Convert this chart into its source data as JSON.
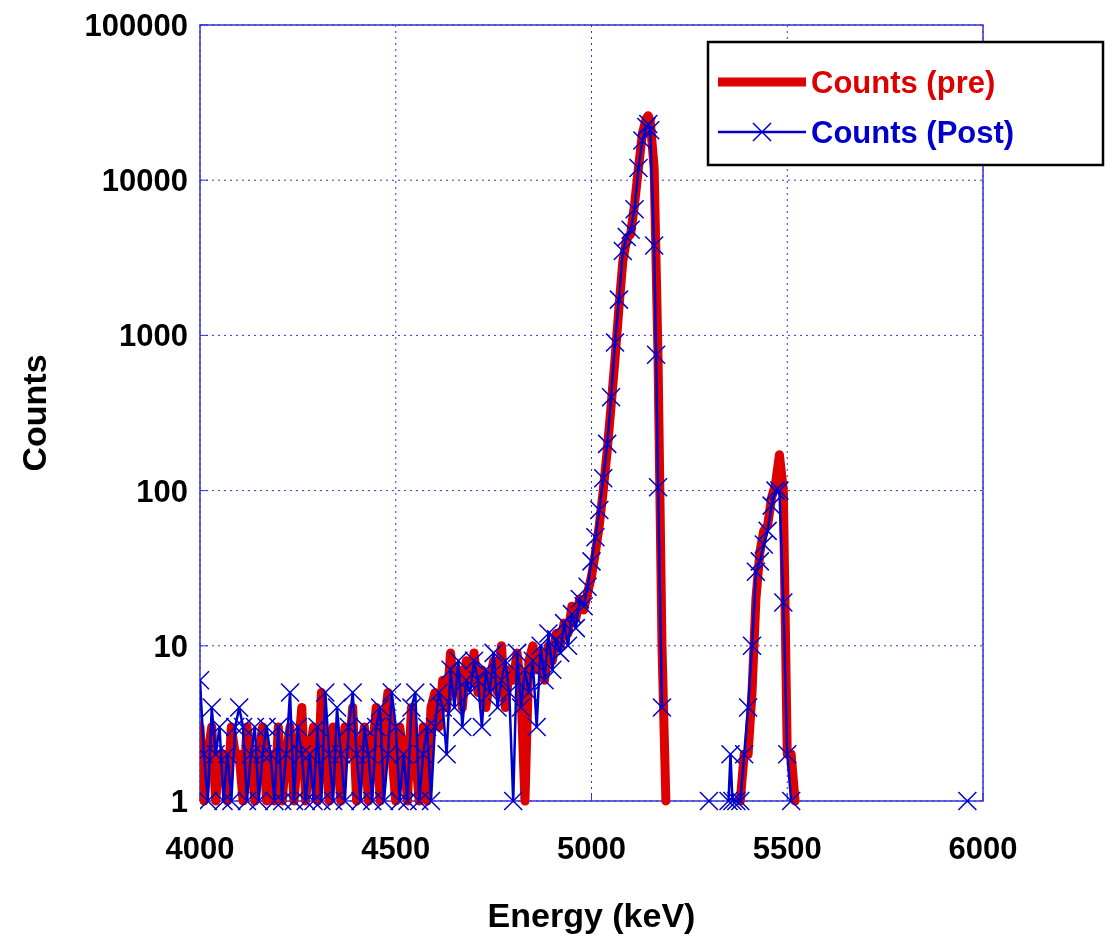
{
  "chart_data": {
    "type": "line",
    "xlabel": "Energy (keV)",
    "ylabel": "Counts",
    "log": "y",
    "grid": true,
    "legend": "top right",
    "xlim": [
      4000,
      6000
    ],
    "xticks": [
      4000,
      4500,
      5000,
      5500,
      6000
    ],
    "ylim": [
      1,
      100000
    ],
    "yticks": [
      1,
      10,
      100,
      1000,
      10000,
      100000
    ],
    "series": [
      {
        "name": "Counts (pre)",
        "color": "#dd0000",
        "marker": "none",
        "x": [
          4000,
          4010,
          4020,
          4030,
          4040,
          4050,
          4060,
          4070,
          4080,
          4090,
          4100,
          4110,
          4120,
          4130,
          4140,
          4150,
          4160,
          4170,
          4180,
          4190,
          4200,
          4210,
          4220,
          4230,
          4240,
          4250,
          4260,
          4270,
          4280,
          4290,
          4300,
          4310,
          4320,
          4330,
          4340,
          4350,
          4360,
          4370,
          4380,
          4390,
          4400,
          4410,
          4420,
          4430,
          4440,
          4450,
          4460,
          4470,
          4480,
          4490,
          4500,
          4510,
          4520,
          4530,
          4540,
          4550,
          4560,
          4570,
          4580,
          4590,
          4600,
          4610,
          4620,
          4630,
          4640,
          4650,
          4660,
          4670,
          4680,
          4690,
          4700,
          4710,
          4720,
          4730,
          4740,
          4750,
          4760,
          4770,
          4780,
          4790,
          4800,
          4810,
          4820,
          4830,
          4840,
          4850,
          4860,
          4870,
          4880,
          4890,
          4900,
          4910,
          4920,
          4930,
          4940,
          4950,
          4960,
          4970,
          4980,
          4990,
          5000,
          5010,
          5020,
          5030,
          5040,
          5050,
          5060,
          5070,
          5080,
          5090,
          5100,
          5110,
          5120,
          5130,
          5140,
          5145,
          5150,
          5160,
          5170,
          5180,
          5190,
          5200,
          5380,
          5390,
          5400,
          5410,
          5420,
          5430,
          5440,
          5450,
          5460,
          5470,
          5480,
          5490,
          5500,
          5510,
          5520
        ],
        "values": [
          3,
          1,
          2,
          3,
          1,
          2,
          2,
          1,
          3,
          2,
          2,
          1,
          3,
          2,
          1,
          2,
          3,
          1,
          2,
          1,
          3,
          1,
          2,
          3,
          1,
          2,
          4,
          1,
          2,
          3,
          1,
          5,
          2,
          1,
          3,
          2,
          1,
          3,
          2,
          4,
          1,
          2,
          3,
          1,
          2,
          4,
          1,
          3,
          5,
          2,
          1,
          3,
          2,
          1,
          4,
          2,
          1,
          3,
          1,
          4,
          5,
          3,
          6,
          4,
          9,
          5,
          7,
          4,
          8,
          6,
          9,
          5,
          7,
          4,
          6,
          8,
          5,
          10,
          4,
          7,
          6,
          9,
          5,
          1,
          8,
          10,
          7,
          9,
          6,
          10,
          8,
          12,
          10,
          14,
          12,
          18,
          15,
          20,
          17,
          22,
          28,
          40,
          60,
          100,
          180,
          350,
          700,
          1500,
          3000,
          4200,
          4500,
          7000,
          12000,
          20000,
          25000,
          26000,
          24000,
          12000,
          700,
          10,
          1,
          null,
          1,
          2,
          2,
          5,
          20,
          40,
          55,
          60,
          90,
          110,
          170,
          100,
          2,
          2,
          1
        ]
      },
      {
        "name": "Counts (Post)",
        "color": "#0000cc",
        "marker": "cross",
        "x": [
          4000,
          4010,
          4020,
          4030,
          4040,
          4050,
          4060,
          4070,
          4080,
          4090,
          4100,
          4110,
          4120,
          4130,
          4140,
          4150,
          4160,
          4170,
          4180,
          4190,
          4200,
          4210,
          4220,
          4230,
          4240,
          4250,
          4260,
          4270,
          4280,
          4290,
          4300,
          4310,
          4320,
          4330,
          4340,
          4350,
          4360,
          4370,
          4380,
          4390,
          4400,
          4410,
          4420,
          4430,
          4440,
          4450,
          4460,
          4470,
          4480,
          4490,
          4500,
          4510,
          4520,
          4530,
          4540,
          4550,
          4560,
          4570,
          4580,
          4590,
          4600,
          4610,
          4620,
          4630,
          4640,
          4650,
          4660,
          4670,
          4680,
          4690,
          4700,
          4710,
          4720,
          4730,
          4740,
          4750,
          4760,
          4770,
          4780,
          4790,
          4800,
          4810,
          4820,
          4830,
          4840,
          4850,
          4860,
          4870,
          4880,
          4890,
          4900,
          4910,
          4920,
          4930,
          4940,
          4950,
          4960,
          4970,
          4980,
          4990,
          5000,
          5010,
          5020,
          5030,
          5040,
          5050,
          5060,
          5070,
          5080,
          5090,
          5100,
          5110,
          5120,
          5130,
          5140,
          5145,
          5150,
          5160,
          5165,
          5170,
          5180,
          5200,
          5300,
          5320,
          5350,
          5355,
          5360,
          5370,
          5380,
          5390,
          5400,
          5410,
          5420,
          5430,
          5440,
          5450,
          5460,
          5470,
          5480,
          5490,
          5500,
          5510,
          5520,
          5960
        ],
        "values": [
          6,
          2,
          1,
          4,
          2,
          3,
          1,
          2,
          1,
          3,
          4,
          3,
          1,
          2,
          3,
          1,
          2,
          3,
          2,
          1,
          3,
          1,
          2,
          5,
          1,
          3,
          2,
          1,
          2,
          1,
          3,
          1,
          5,
          2,
          1,
          4,
          2,
          1,
          3,
          5,
          2,
          1,
          3,
          2,
          1,
          3,
          4,
          1,
          2,
          5,
          3,
          1,
          2,
          1,
          4,
          5,
          1,
          2,
          3,
          1,
          3,
          5,
          4,
          2,
          7,
          4,
          8,
          3,
          6,
          5,
          8,
          6,
          3,
          7,
          5,
          9,
          4,
          6,
          8,
          5,
          1,
          9,
          4,
          7,
          5,
          8,
          3,
          10,
          6,
          12,
          7,
          11,
          9,
          14,
          10,
          16,
          13,
          20,
          18,
          24,
          35,
          50,
          75,
          120,
          200,
          400,
          900,
          1700,
          3500,
          4300,
          4800,
          6500,
          12000,
          18000,
          22000,
          23000,
          21000,
          3800,
          750,
          105,
          4,
          null,
          1,
          null,
          1,
          2,
          1,
          1,
          1,
          2,
          4,
          10,
          30,
          35,
          45,
          55,
          80,
          100,
          100,
          19,
          2,
          1,
          null,
          1
        ]
      }
    ]
  }
}
